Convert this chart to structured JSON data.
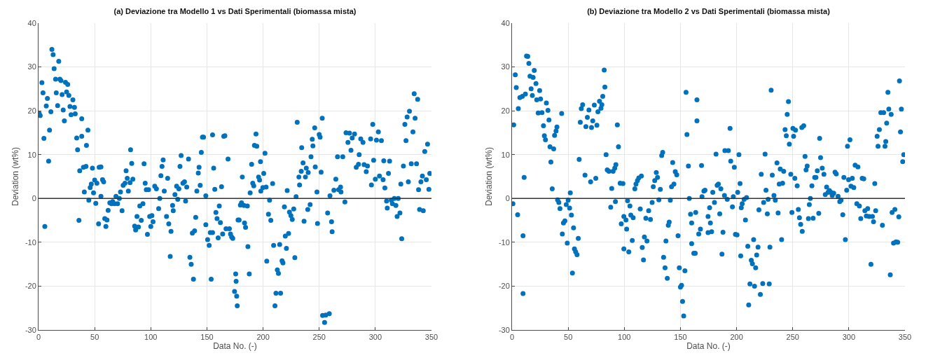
{
  "chart_data": [
    {
      "type": "scatter",
      "title": "(a) Deviazione tra Modello 1 vs Dati Sperimentali (biomassa mista)",
      "xlabel": "Data No. (-)",
      "ylabel": "Deviation (wt%)",
      "color": "#0072bd",
      "marker": "circle",
      "grid": true,
      "xlim": [
        0,
        350
      ],
      "ylim": [
        -30,
        40
      ],
      "xticks": [
        0,
        50,
        100,
        150,
        200,
        250,
        300,
        350
      ],
      "yticks": [
        -30,
        -20,
        -10,
        0,
        10,
        20,
        30,
        40
      ],
      "ref_lines": [
        {
          "axis": "y",
          "value": 0,
          "color": "#333333"
        }
      ],
      "x": [
        0.6,
        1.5,
        3,
        4,
        4.8,
        5.6,
        6.9,
        7.9,
        9,
        9.8,
        11,
        11.9,
        13,
        13.9,
        15.2,
        15.8,
        17,
        18,
        19,
        20,
        21,
        22,
        23,
        24,
        25,
        26,
        27,
        28,
        29,
        30.6,
        32,
        32.7,
        34,
        34.8,
        36,
        36.7,
        38.5,
        38.5,
        40,
        40.8,
        42.3,
        42.7,
        44,
        44.8,
        46,
        47,
        48,
        49,
        50,
        51,
        52,
        53.5,
        54,
        55.6,
        55.6,
        57,
        58,
        59,
        60,
        61,
        62,
        63.5,
        65,
        66,
        67.7,
        69,
        70.4,
        72,
        73,
        74.4,
        75.4,
        77,
        78,
        79,
        80,
        81.5,
        82,
        83,
        84,
        85.6,
        86.5,
        87.7,
        89,
        90.2,
        91.5,
        93,
        94,
        95,
        96,
        97,
        98,
        99,
        100,
        101,
        102,
        103.5,
        105,
        107,
        108,
        109,
        110,
        111,
        112,
        114,
        115,
        116,
        117.3,
        118,
        119.4,
        120,
        121.5,
        123,
        124,
        125,
        126,
        127,
        128.6,
        130,
        131,
        132,
        133.6,
        134.8,
        136,
        137,
        138,
        139,
        140,
        141,
        142.3,
        143,
        144,
        145,
        146,
        147,
        149,
        149,
        150.6,
        152,
        153,
        153.8,
        155,
        155,
        156,
        157,
        158,
        159,
        160,
        161,
        162,
        163,
        164,
        165,
        166,
        167,
        168.8,
        170,
        171,
        172,
        173,
        174.6,
        175.6,
        176,
        176.5,
        177,
        177.7,
        178.7,
        179.8,
        180.8,
        181.5,
        183,
        183.5,
        184.4,
        186,
        186.5,
        187.7,
        188.5,
        189.8,
        190.8,
        191.7,
        193.7,
        192.3,
        194.4,
        196,
        196.9,
        197.7,
        198,
        199.8,
        200.6,
        201.7,
        202.7,
        203.3,
        204.8,
        205.8,
        206.9,
        208.5,
        209.4,
        210.6,
        211.5,
        212.7,
        213.7,
        214.8,
        215.6,
        216.9,
        217.7,
        219,
        219.8,
        220.8,
        221.5,
        222.7,
        223.5,
        224.8,
        226,
        227.3,
        228.3,
        229.4,
        230.4,
        231.9,
        232.5,
        234,
        234.4,
        235.6,
        236.5,
        237.7,
        238.5,
        240.2,
        239.8,
        241.9,
        242.7,
        243.8,
        244.4,
        246,
        246.5,
        248,
        248.5,
        250,
        250.8,
        251.7,
        252.7,
        253,
        254.8,
        255.8,
        257.5,
        259,
        259.6,
        261,
        261.5,
        263.1,
        264.8,
        266.3,
        267.3,
        269,
        269.4,
        271,
        272.9,
        273.9,
        275.6,
        277,
        278.3,
        279.4,
        281.5,
        283,
        285,
        285.6,
        287,
        289,
        290,
        291.9,
        293,
        295.8,
        296.5,
        297.7,
        298.5,
        300,
        301,
        302.7,
        303.7,
        305.4,
        306.9,
        307.5,
        308.5,
        310,
        310.6,
        311.7,
        312.7,
        314.2,
        315.2,
        316.9,
        318.3,
        319.4,
        320.4,
        321.9,
        322.7,
        323.5,
        325,
        326.3,
        327.3,
        328.3,
        329.4,
        330.4,
        332,
        333.5,
        334.6,
        335.4,
        336.7,
        337.7,
        338.5,
        339.4,
        340.6,
        341.9,
        342.7,
        344,
        345.4,
        346.5,
        347.7,
        348.5
      ],
      "values": [
        19.4,
        18.9,
        26.4,
        24.1,
        13.7,
        -6.4,
        21.1,
        22.8,
        8.5,
        15.6,
        19.8,
        34,
        32.8,
        29.6,
        27.2,
        24.1,
        21.2,
        31.3,
        27.2,
        26.9,
        23.7,
        20.2,
        17.7,
        26.5,
        24.3,
        26,
        23.5,
        21,
        19.1,
        22.5,
        20.8,
        19.3,
        13.8,
        11.1,
        -5,
        6.3,
        18.2,
        14.2,
        7.1,
        1.5,
        7.3,
        12.1,
        15.6,
        -0.4,
        2.5,
        3.3,
        6.9,
        1.3,
        4.2,
        -1.1,
        3.5,
        -5.8,
        7.1,
        7.2,
        0.5,
        4.3,
        3.8,
        -4.6,
        -6.4,
        -4.9,
        -2.7,
        -1,
        -1.2,
        -0.7,
        -1.2,
        0.5,
        -1.2,
        0,
        1.5,
        -2.8,
        3,
        3.5,
        6.3,
        4.6,
        1.7,
        3.6,
        11.1,
        8,
        4.4,
        -6.3,
        -7.2,
        -4.1,
        -6.5,
        -1.7,
        -5,
        -1.2,
        7.9,
        3.5,
        2,
        -8.2,
        2,
        -4.1,
        -6.4,
        -3.9,
        -5.3,
        2.8,
        2.2,
        -2.3,
        0,
        5.2,
        7.3,
        8.8,
        1.7,
        -4.1,
        4.6,
        -5.8,
        -13.2,
        -7.5,
        -1.6,
        -2.8,
        0.9,
        2.8,
        -0.2,
        2.2,
        7.3,
        9.8,
        3.5,
        3.8,
        -0.6,
        2.6,
        9,
        -13.4,
        -15,
        -7.9,
        -18.4,
        -7.4,
        -4.3,
        1.7,
        5.8,
        7.1,
        3,
        10.5,
        14,
        14,
        0.6,
        -6,
        -9.4,
        -10.7,
        -7.8,
        -18.4,
        -7.8,
        14.5,
        6.9,
        2.1,
        -3.2,
        -4.6,
        -9,
        -1.7,
        -5.5,
        2.7,
        -8.1,
        14.2,
        14.3,
        -6.9,
        9,
        -6.9,
        -8.1,
        -8.8,
        -9.1,
        -21.2,
        -17.2,
        -18.9,
        -22.3,
        -24.5,
        -4.9,
        -4.9,
        -1.5,
        -1,
        4.9,
        -1.6,
        -5.6,
        -6.6,
        -1.7,
        -11,
        -17.2,
        1.3,
        7.8,
        3.5,
        2.9,
        14.7,
        12.1,
        11.9,
        4.9,
        4.2,
        8.4,
        1.7,
        2.5,
        5.7,
        10.3,
        2.6,
        -14.3,
        -3.6,
        -0.4,
        -5,
        3.4,
        -10.7,
        -24.5,
        -21.6,
        -16.3,
        -17.1,
        -10.5,
        -21.6,
        -14.2,
        -14.7,
        -1.9,
        -8.6,
        -11.4,
        1.8,
        -8,
        -3.1,
        -3.9,
        -4.8,
        -2.4,
        -13.5,
        0.4,
        17.4,
        4.9,
        3.1,
        6.2,
        11.6,
        8.1,
        -5.2,
        4.9,
        6.9,
        5.9,
        -2.5,
        -1.4,
        9.5,
        13.5,
        12,
        16.1,
        7.2,
        1.5,
        -5.7,
        14.6,
        14,
        6,
        18.3,
        -26.7,
        -28.3,
        -26.6,
        -3.3,
        -26.3,
        0.6,
        -5.3,
        -7.6,
        1.9,
        4.4,
        9.5,
        2,
        2.6,
        1.5,
        9.5,
        -0.8,
        15,
        12.8,
        14.9,
        11,
        13.8,
        14.7,
        7.1,
        7.8,
        10,
        13.6,
        12.8,
        7.7,
        6.1,
        7.4,
        13.6,
        3.1,
        16.9,
        8.7,
        4.4,
        13.3,
        15.2,
        5.1,
        13.2,
        4.3,
        8.6,
        2.4,
        -0.6,
        -2.2,
        5.7,
        8.5,
        -0.4,
        -1.2,
        0,
        -1.6,
        -4.1,
        0,
        -3.3,
        3.3,
        -9.2,
        7.4,
        16.9,
        13.2,
        18.6,
        3.8,
        19.9,
        7.9,
        15.2,
        23.9,
        18.3,
        7.9,
        22.6,
        2,
        -2.5,
        3.8,
        5.1,
        -2.8,
        10.7,
        4.3,
        12.4,
        2.1,
        5.7
      ]
    },
    {
      "type": "scatter",
      "title": "(b) Deviazione tra Modello 2 vs Dati Sperimentali (biomassa mista)",
      "xlabel": "Data No. (-)",
      "ylabel": "Deviation (wt%)",
      "color": "#0072bd",
      "marker": "circle",
      "grid": true,
      "xlim": [
        0,
        350
      ],
      "ylim": [
        -30,
        40
      ],
      "xticks": [
        0,
        50,
        100,
        150,
        200,
        250,
        300,
        350
      ],
      "yticks": [
        -30,
        -20,
        -10,
        0,
        10,
        20,
        30,
        40
      ],
      "ref_lines": [
        {
          "axis": "y",
          "value": 0,
          "color": "#333333"
        }
      ],
      "x": [
        0.8,
        1.5,
        2.9,
        3.8,
        5,
        5.6,
        7,
        9.2,
        9.8,
        10.8,
        9.8,
        11.9,
        12.9,
        14,
        15,
        16,
        17,
        18.1,
        18.8,
        19.8,
        21.3,
        22,
        23.3,
        24.6,
        25.4,
        26.7,
        28,
        28.8,
        29.8,
        30.6,
        32,
        32.9,
        33.8,
        34.6,
        35.8,
        37.1,
        37.9,
        39.2,
        40,
        40.6,
        41.7,
        42.7,
        44.2,
        44.8,
        45.8,
        47.1,
        48.3,
        49.2,
        50,
        51.3,
        51.9,
        52.9,
        53.8,
        54.8,
        55.6,
        56.7,
        57.9,
        59,
        59.8,
        60.8,
        61.7,
        62.9,
        65,
        65.8,
        67.1,
        68.5,
        70,
        70.8,
        71.9,
        73.3,
        74.6,
        75.6,
        76.5,
        77.9,
        79.2,
        80,
        80.8,
        82.1,
        82.7,
        83.8,
        84.8,
        86.3,
        87.9,
        88.8,
        90,
        91.5,
        92.5,
        92.1,
        93.8,
        94.8,
        96.3,
        97.3,
        98.8,
        99.6,
        99.6,
        101.5,
        102.1,
        102.9,
        104,
        105,
        105.8,
        107.1,
        107.9,
        109.4,
        110.4,
        111.7,
        112.9,
        114.2,
        115.2,
        116,
        117.1,
        117.9,
        119.2,
        120.2,
        121.7,
        123.3,
        124.8,
        125.8,
        127.1,
        128.5,
        129.6,
        130.8,
        132.1,
        133.3,
        134.2,
        135,
        136.3,
        137.1,
        138.3,
        139.2,
        140,
        141,
        142.1,
        143.1,
        144.2,
        145.4,
        146.7,
        147.9,
        149,
        150,
        151,
        151.9,
        152.9,
        154,
        155,
        155.8,
        157.1,
        157.9,
        159,
        160,
        160,
        161.9,
        163.6,
        163.2,
        164.7,
        164.7,
        166.3,
        167.8,
        168.8,
        169.2,
        170.9,
        171.9,
        174.6,
        174.6,
        176,
        176.7,
        177.8,
        178.8,
        180.3,
        181.7,
        182.7,
        183.8,
        185,
        186,
        187,
        187.9,
        189.2,
        189.6,
        191.7,
        192.7,
        194.2,
        194.8,
        196.3,
        197.1,
        198,
        199,
        200.4,
        201,
        202.1,
        203.1,
        204.2,
        205,
        206.7,
        207.9,
        208.9,
        203.7,
        210,
        210.8,
        211.9,
        213.1,
        214.1,
        215.2,
        216,
        217,
        217.9,
        219.1,
        219.9,
        221.2,
        222,
        223.3,
        224.1,
        225.4,
        226.2,
        227.4,
        228.1,
        229.1,
        229.7,
        230.8,
        231.8,
        233.3,
        234.5,
        236,
        237,
        238,
        238.9,
        240.1,
        241,
        242,
        243.2,
        244.3,
        245.1,
        246.2,
        247,
        248.3,
        249.3,
        250.2,
        250.8,
        251.9,
        252.5,
        254,
        255,
        256,
        257.1,
        258.5,
        258.1,
        259.8,
        261,
        261.9,
        262.9,
        264,
        264.8,
        265.7,
        267.1,
        268.2,
        269.6,
        270.7,
        271.9,
        273.2,
        274,
        274.8,
        276.3,
        277.8,
        279,
        280.2,
        281.5,
        282.7,
        284,
        285.2,
        286.5,
        287.7,
        288.8,
        290.4,
        291.9,
        293.1,
        294.6,
        295.6,
        296.9,
        298.1,
        298.8,
        299.8,
        301,
        301.9,
        303.1,
        304.4,
        305.6,
        307.1,
        308.1,
        309.4,
        310.6,
        311.9,
        313.3,
        314.3,
        315.6,
        316.8,
        318.1,
        319.7,
        321,
        322,
        323.1,
        323.9,
        325.2,
        326,
        327.2,
        328.5,
        329.9,
        331,
        332.2,
        332.9,
        333.7,
        334.8,
        335.6,
        336.9,
        337.7,
        338.5,
        339.8,
        341,
        342,
        343.5,
        344.5,
        345.1,
        346,
        346.8,
        348,
        348.9
      ],
      "values": [
        -1.2,
        16.8,
        28.2,
        25.3,
        -3.7,
        20.5,
        23,
        23.3,
        -8.5,
        4.8,
        -21.7,
        23.8,
        32.5,
        32.4,
        30.8,
        27.9,
        25,
        23.5,
        27.6,
        29.2,
        26.2,
        22.5,
        19.5,
        24.6,
        22.7,
        19.6,
        16.6,
        14.3,
        13.4,
        21.8,
        20.1,
        17.9,
        11.8,
        8.3,
        2.2,
        11.3,
        14.4,
        15.4,
        16.3,
        -0.3,
        -0.9,
        -2.3,
        19.4,
        -8.1,
        -5.6,
        -5.1,
        -1.4,
        -10.2,
        -0.4,
        -2.2,
        1.3,
        -3.8,
        -17,
        -6.7,
        -11.5,
        -12.2,
        -12.8,
        -9.1,
        8.9,
        17.4,
        20.5,
        21.4,
        5.3,
        16.4,
        18.5,
        20.2,
        3.8,
        16.2,
        17.7,
        21.3,
        4.6,
        16.7,
        19.8,
        22.2,
        20.6,
        21.4,
        23.3,
        29.3,
        25.4,
        10,
        6.5,
        6.2,
        -2,
        2.3,
        6.2,
        6.9,
        7.7,
        -0.7,
        16.8,
        11.8,
        3.5,
        -5.8,
        3.4,
        -11.5,
        -4.1,
        -4.9,
        -7,
        -0.5,
        -12.2,
        -1.7,
        -3.8,
        -9.6,
        -4.4,
        2.2,
        3.3,
        4.1,
        4.7,
        -2.4,
        5.1,
        -11.2,
        -14,
        -8.8,
        -4.5,
        -9.7,
        -2.8,
        -4.8,
        -0.9,
        2.7,
        4.1,
        5.9,
        4.8,
        -0.3,
        2.1,
        9.8,
        10.5,
        -13.4,
        -15.8,
        -9.7,
        -18.2,
        -6.1,
        -5.4,
        -0.4,
        2.7,
        8.2,
        3.3,
        6.1,
        5.4,
        -8.5,
        -15.8,
        -20.2,
        -19.8,
        -23.5,
        -26.8,
        -16.5,
        24.2,
        14.6,
        7.4,
        0,
        -3.6,
        -5.6,
        -10.3,
        -12.5,
        -3.2,
        -12.5,
        22.5,
        17.7,
        -8.1,
        -7,
        7.5,
        0.4,
        1.7,
        1.9,
        -4.1,
        -7.8,
        -2.1,
        -5.6,
        -7.6,
        1.4,
        -0.9,
        10.1,
        3,
        3.3,
        -3.5,
        2.2,
        -12.7,
        -7.7,
        0.7,
        10.9,
        -0.2,
        10.9,
        16,
        8.5,
        -1.9,
        0.4,
        7.1,
        -8.2,
        -8.3,
        1.4,
        10,
        3.4,
        -2.1,
        -1.2,
        -0.2,
        -4.9,
        0.2,
        -13.1,
        -10.9,
        -24.3,
        -19.5,
        -14.1,
        -14.9,
        -9.4,
        -20,
        -15.8,
        -12.9,
        -11.1,
        -2.6,
        -21.9,
        5.5,
        -19.4,
        -0.9,
        10.1,
        1.9,
        -3.5,
        -0.2,
        -19.5,
        -11.1,
        24.7,
        5.3,
        0.7,
        -0.4,
        8.1,
        -3.3,
        3.3,
        6.7,
        -9.4,
        3.5,
        6.2,
        15.7,
        14.3,
        19.2,
        22.1,
        12.4,
        5.5,
        -3.2,
        16,
        14.2,
        4.6,
        15.6,
        2.9,
        -2.5,
        -4.4,
        -5.9,
        -7.5,
        16.2,
        16.6,
        9.6,
        6.5,
        7.4,
        -4.6,
        -1.4,
        0,
        2.9,
        -4.5,
        4.8,
        4.8,
        6.3,
        -3.4,
        13.7,
        9.3,
        6.9,
        5.5,
        0.9,
        2.6,
        1.4,
        1.8,
        1.4,
        0.7,
        1.2,
        6,
        5.6,
        0.5,
        -0.7,
        -0.4,
        -3.7,
        4.8,
        -9.4,
        1.9,
        11.9,
        4.3,
        13.4,
        2.8,
        4.6,
        2.5,
        7.6,
        -1.2,
        7.2,
        -1.7,
        -4.6,
        4.6,
        4.5,
        -2.8,
        -4,
        -2.3,
        -4.1,
        -15,
        -4.1,
        -5.3,
        3.4,
        -2.8,
        14.2,
        11.9,
        15.7,
        19.6,
        -6.1,
        19.6,
        11.9,
        13,
        17.2,
        24.2,
        20.4,
        -17.4,
        19.2,
        -3.2,
        -10.2,
        -2.5,
        -9.9,
        -10,
        -4.2,
        26.8,
        15.2,
        20.4,
        8.4,
        10
      ]
    }
  ]
}
